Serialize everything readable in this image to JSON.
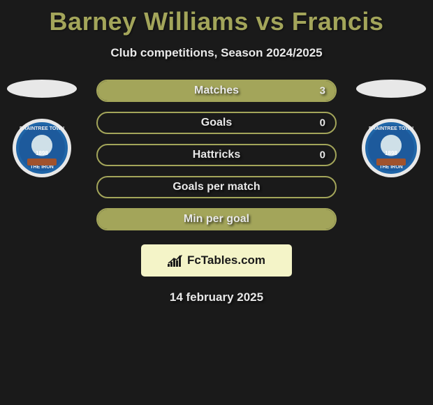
{
  "title": "Barney Williams vs Francis",
  "subtitle": "Club competitions, Season 2024/2025",
  "colors": {
    "accent": "#a3a55a",
    "background": "#1a1a1a",
    "text": "#e8e8e8",
    "branding_bg": "#f4f4c8",
    "badge_blue": "#1d5a9c"
  },
  "players": {
    "left": {
      "name": "Barney Williams",
      "club_top": "BRAINTREE TOWN",
      "club_bottom": "THE IRON",
      "club_year": "1898"
    },
    "right": {
      "name": "Francis",
      "club_top": "BRAINTREE TOWN",
      "club_bottom": "THE IRON",
      "club_year": "1898"
    }
  },
  "stats": [
    {
      "label": "Matches",
      "left_value": "",
      "right_value": "3",
      "left_fill_pct": 0,
      "right_fill_pct": 100
    },
    {
      "label": "Goals",
      "left_value": "",
      "right_value": "0",
      "left_fill_pct": 0,
      "right_fill_pct": 0
    },
    {
      "label": "Hattricks",
      "left_value": "",
      "right_value": "0",
      "left_fill_pct": 0,
      "right_fill_pct": 0
    },
    {
      "label": "Goals per match",
      "left_value": "",
      "right_value": "",
      "left_fill_pct": 0,
      "right_fill_pct": 0
    },
    {
      "label": "Min per goal",
      "left_value": "",
      "right_value": "",
      "left_fill_pct": 0,
      "right_fill_pct": 100
    }
  ],
  "branding": "FcTables.com",
  "date": "14 february 2025"
}
